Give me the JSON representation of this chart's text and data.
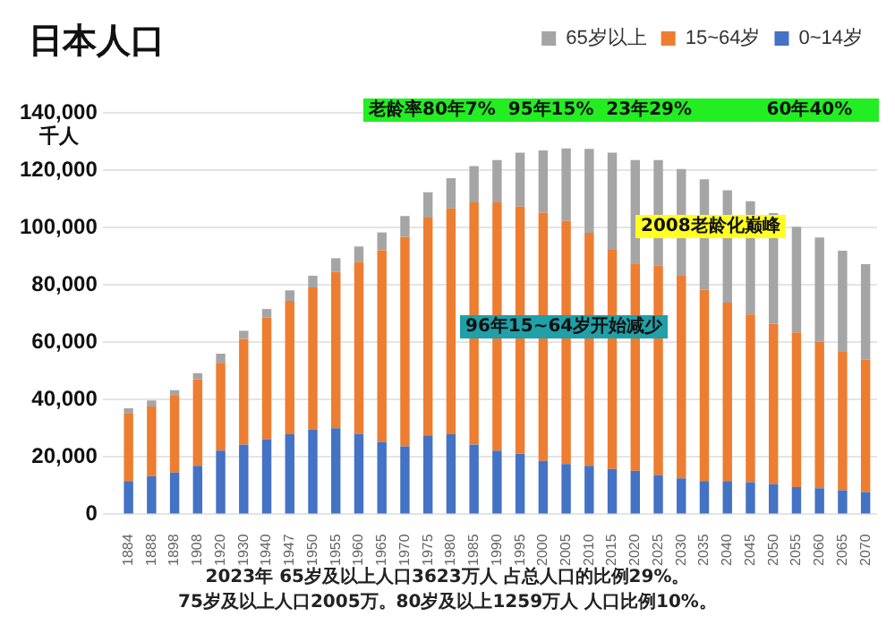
{
  "chart_data": {
    "type": "bar",
    "title": "日本人口",
    "ylabel": "千人",
    "stacked": true,
    "grid": "y",
    "legend": "top right",
    "categories": [
      "1884",
      "1888",
      "1898",
      "1908",
      "1920",
      "1930",
      "1940",
      "1947",
      "1950",
      "1955",
      "1960",
      "1965",
      "1970",
      "1975",
      "1980",
      "1985",
      "1990",
      "1995",
      "2000",
      "2005",
      "2010",
      "2015",
      "2020",
      "2025",
      "2030",
      "2035",
      "2040",
      "2045",
      "2050",
      "2055",
      "2060",
      "2065",
      "2070"
    ],
    "series": [
      {
        "name": "0~14岁",
        "color": "#4472c4",
        "values": [
          11600,
          13300,
          14600,
          16900,
          22200,
          24300,
          26200,
          27900,
          29600,
          30000,
          28100,
          25300,
          23700,
          27500,
          27900,
          24300,
          22200,
          21100,
          18600,
          17500,
          16900,
          15800,
          15200,
          13700,
          12500,
          11600,
          11600,
          11200,
          10600,
          9500,
          9100,
          8400,
          7800
        ]
      },
      {
        "name": "15~64岁",
        "color": "#ed7d31",
        "values": [
          23700,
          24300,
          27000,
          30200,
          30600,
          36900,
          42400,
          46500,
          49500,
          54500,
          59900,
          66800,
          73000,
          76000,
          78800,
          84500,
          86600,
          86200,
          86600,
          84900,
          81300,
          76400,
          72300,
          73000,
          70900,
          66700,
          62200,
          58500,
          55900,
          53900,
          51100,
          48200,
          46100
        ]
      },
      {
        "name": "65岁以上",
        "color": "#a5a5a5",
        "values": [
          1700,
          2100,
          1700,
          2100,
          3200,
          2800,
          3000,
          3700,
          4100,
          4800,
          5400,
          6200,
          7300,
          8800,
          10500,
          12600,
          14700,
          18800,
          21700,
          25200,
          29200,
          33900,
          36000,
          36800,
          37000,
          38500,
          39200,
          39500,
          38500,
          36900,
          36300,
          35300,
          33300
        ]
      }
    ],
    "ylim": [
      0,
      140000
    ],
    "yticks": [
      {
        "value": 0,
        "label": "0"
      },
      {
        "value": 20000,
        "label": "20,000"
      },
      {
        "value": 40000,
        "label": "40,000"
      },
      {
        "value": 60000,
        "label": "60,000"
      },
      {
        "value": 80000,
        "label": "80,000"
      },
      {
        "value": 100000,
        "label": "100,000"
      },
      {
        "value": 120000,
        "label": "120,000"
      },
      {
        "value": 140000,
        "label": "140,000"
      }
    ],
    "annotations": [
      "老龄率80年7%  95年15%  23年29%            60年40%",
      "2008老龄化巅峰",
      "96年15~64岁开始减少",
      "2023年 65岁及以上人口3623万人 占总人口的比例29%。",
      "75岁及以上人口2005万。80岁及以上1259万人 人口比例10%。"
    ]
  }
}
